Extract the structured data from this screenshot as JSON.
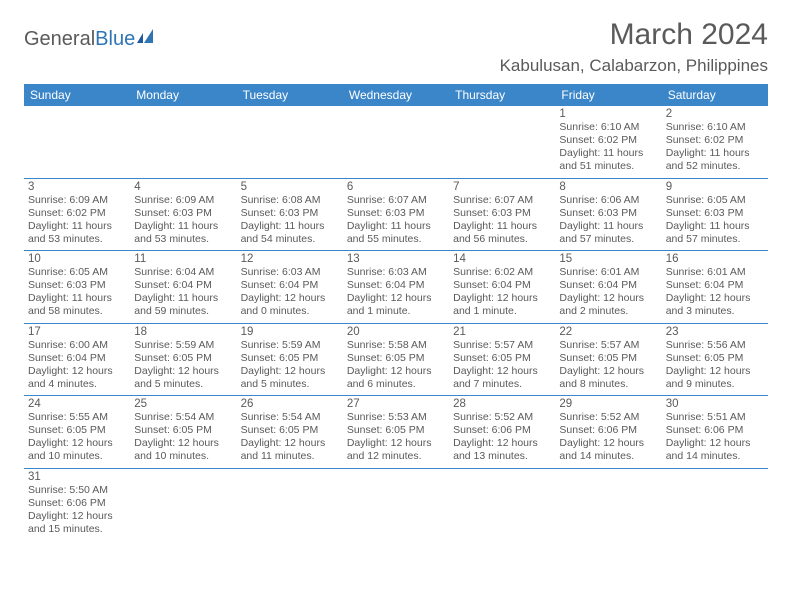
{
  "logo": {
    "text1": "General",
    "text2": "Blue"
  },
  "title": "March 2024",
  "location": "Kabulusan, Calabarzon, Philippines",
  "header_bg": "#3a86c8",
  "text_color": "#5a5a5a",
  "dow": [
    "Sunday",
    "Monday",
    "Tuesday",
    "Wednesday",
    "Thursday",
    "Friday",
    "Saturday"
  ],
  "weeks": [
    [
      null,
      null,
      null,
      null,
      null,
      {
        "n": "1",
        "sr": "Sunrise: 6:10 AM",
        "ss": "Sunset: 6:02 PM",
        "d1": "Daylight: 11 hours",
        "d2": "and 51 minutes."
      },
      {
        "n": "2",
        "sr": "Sunrise: 6:10 AM",
        "ss": "Sunset: 6:02 PM",
        "d1": "Daylight: 11 hours",
        "d2": "and 52 minutes."
      }
    ],
    [
      {
        "n": "3",
        "sr": "Sunrise: 6:09 AM",
        "ss": "Sunset: 6:02 PM",
        "d1": "Daylight: 11 hours",
        "d2": "and 53 minutes."
      },
      {
        "n": "4",
        "sr": "Sunrise: 6:09 AM",
        "ss": "Sunset: 6:03 PM",
        "d1": "Daylight: 11 hours",
        "d2": "and 53 minutes."
      },
      {
        "n": "5",
        "sr": "Sunrise: 6:08 AM",
        "ss": "Sunset: 6:03 PM",
        "d1": "Daylight: 11 hours",
        "d2": "and 54 minutes."
      },
      {
        "n": "6",
        "sr": "Sunrise: 6:07 AM",
        "ss": "Sunset: 6:03 PM",
        "d1": "Daylight: 11 hours",
        "d2": "and 55 minutes."
      },
      {
        "n": "7",
        "sr": "Sunrise: 6:07 AM",
        "ss": "Sunset: 6:03 PM",
        "d1": "Daylight: 11 hours",
        "d2": "and 56 minutes."
      },
      {
        "n": "8",
        "sr": "Sunrise: 6:06 AM",
        "ss": "Sunset: 6:03 PM",
        "d1": "Daylight: 11 hours",
        "d2": "and 57 minutes."
      },
      {
        "n": "9",
        "sr": "Sunrise: 6:05 AM",
        "ss": "Sunset: 6:03 PM",
        "d1": "Daylight: 11 hours",
        "d2": "and 57 minutes."
      }
    ],
    [
      {
        "n": "10",
        "sr": "Sunrise: 6:05 AM",
        "ss": "Sunset: 6:03 PM",
        "d1": "Daylight: 11 hours",
        "d2": "and 58 minutes."
      },
      {
        "n": "11",
        "sr": "Sunrise: 6:04 AM",
        "ss": "Sunset: 6:04 PM",
        "d1": "Daylight: 11 hours",
        "d2": "and 59 minutes."
      },
      {
        "n": "12",
        "sr": "Sunrise: 6:03 AM",
        "ss": "Sunset: 6:04 PM",
        "d1": "Daylight: 12 hours",
        "d2": "and 0 minutes."
      },
      {
        "n": "13",
        "sr": "Sunrise: 6:03 AM",
        "ss": "Sunset: 6:04 PM",
        "d1": "Daylight: 12 hours",
        "d2": "and 1 minute."
      },
      {
        "n": "14",
        "sr": "Sunrise: 6:02 AM",
        "ss": "Sunset: 6:04 PM",
        "d1": "Daylight: 12 hours",
        "d2": "and 1 minute."
      },
      {
        "n": "15",
        "sr": "Sunrise: 6:01 AM",
        "ss": "Sunset: 6:04 PM",
        "d1": "Daylight: 12 hours",
        "d2": "and 2 minutes."
      },
      {
        "n": "16",
        "sr": "Sunrise: 6:01 AM",
        "ss": "Sunset: 6:04 PM",
        "d1": "Daylight: 12 hours",
        "d2": "and 3 minutes."
      }
    ],
    [
      {
        "n": "17",
        "sr": "Sunrise: 6:00 AM",
        "ss": "Sunset: 6:04 PM",
        "d1": "Daylight: 12 hours",
        "d2": "and 4 minutes."
      },
      {
        "n": "18",
        "sr": "Sunrise: 5:59 AM",
        "ss": "Sunset: 6:05 PM",
        "d1": "Daylight: 12 hours",
        "d2": "and 5 minutes."
      },
      {
        "n": "19",
        "sr": "Sunrise: 5:59 AM",
        "ss": "Sunset: 6:05 PM",
        "d1": "Daylight: 12 hours",
        "d2": "and 5 minutes."
      },
      {
        "n": "20",
        "sr": "Sunrise: 5:58 AM",
        "ss": "Sunset: 6:05 PM",
        "d1": "Daylight: 12 hours",
        "d2": "and 6 minutes."
      },
      {
        "n": "21",
        "sr": "Sunrise: 5:57 AM",
        "ss": "Sunset: 6:05 PM",
        "d1": "Daylight: 12 hours",
        "d2": "and 7 minutes."
      },
      {
        "n": "22",
        "sr": "Sunrise: 5:57 AM",
        "ss": "Sunset: 6:05 PM",
        "d1": "Daylight: 12 hours",
        "d2": "and 8 minutes."
      },
      {
        "n": "23",
        "sr": "Sunrise: 5:56 AM",
        "ss": "Sunset: 6:05 PM",
        "d1": "Daylight: 12 hours",
        "d2": "and 9 minutes."
      }
    ],
    [
      {
        "n": "24",
        "sr": "Sunrise: 5:55 AM",
        "ss": "Sunset: 6:05 PM",
        "d1": "Daylight: 12 hours",
        "d2": "and 10 minutes."
      },
      {
        "n": "25",
        "sr": "Sunrise: 5:54 AM",
        "ss": "Sunset: 6:05 PM",
        "d1": "Daylight: 12 hours",
        "d2": "and 10 minutes."
      },
      {
        "n": "26",
        "sr": "Sunrise: 5:54 AM",
        "ss": "Sunset: 6:05 PM",
        "d1": "Daylight: 12 hours",
        "d2": "and 11 minutes."
      },
      {
        "n": "27",
        "sr": "Sunrise: 5:53 AM",
        "ss": "Sunset: 6:05 PM",
        "d1": "Daylight: 12 hours",
        "d2": "and 12 minutes."
      },
      {
        "n": "28",
        "sr": "Sunrise: 5:52 AM",
        "ss": "Sunset: 6:06 PM",
        "d1": "Daylight: 12 hours",
        "d2": "and 13 minutes."
      },
      {
        "n": "29",
        "sr": "Sunrise: 5:52 AM",
        "ss": "Sunset: 6:06 PM",
        "d1": "Daylight: 12 hours",
        "d2": "and 14 minutes."
      },
      {
        "n": "30",
        "sr": "Sunrise: 5:51 AM",
        "ss": "Sunset: 6:06 PM",
        "d1": "Daylight: 12 hours",
        "d2": "and 14 minutes."
      }
    ],
    [
      {
        "n": "31",
        "sr": "Sunrise: 5:50 AM",
        "ss": "Sunset: 6:06 PM",
        "d1": "Daylight: 12 hours",
        "d2": "and 15 minutes."
      },
      null,
      null,
      null,
      null,
      null,
      null
    ]
  ]
}
